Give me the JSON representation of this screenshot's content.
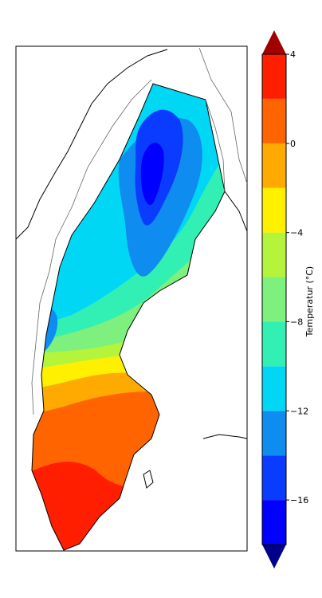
{
  "colorbar": {
    "label": "Temperatur (°C)",
    "min": -18,
    "max": 4,
    "step": 2,
    "extend": "both",
    "ticks": [
      {
        "value": 4,
        "label": "4"
      },
      {
        "value": 0,
        "label": "0"
      },
      {
        "value": -4,
        "label": "−4"
      },
      {
        "value": -8,
        "label": "−8"
      },
      {
        "value": -12,
        "label": "−12"
      },
      {
        "value": -16,
        "label": "−16"
      }
    ],
    "bands": [
      {
        "from": -18,
        "to": -16,
        "color": "#0000ff"
      },
      {
        "from": -16,
        "to": -14,
        "color": "#0a3cff"
      },
      {
        "from": -14,
        "to": -12,
        "color": "#0f8cf0"
      },
      {
        "from": -12,
        "to": -10,
        "color": "#00d7f5"
      },
      {
        "from": -10,
        "to": -8,
        "color": "#32f0b4"
      },
      {
        "from": -8,
        "to": -6,
        "color": "#7df07d"
      },
      {
        "from": -6,
        "to": -4,
        "color": "#b4f53c"
      },
      {
        "from": -4,
        "to": -2,
        "color": "#fff000"
      },
      {
        "from": -2,
        "to": 0,
        "color": "#ffaa00"
      },
      {
        "from": 0,
        "to": 2,
        "color": "#ff6400"
      },
      {
        "from": 2,
        "to": 4,
        "color": "#ff1e00"
      }
    ],
    "over_color": "#a00000",
    "under_color": "#00008c"
  }
}
